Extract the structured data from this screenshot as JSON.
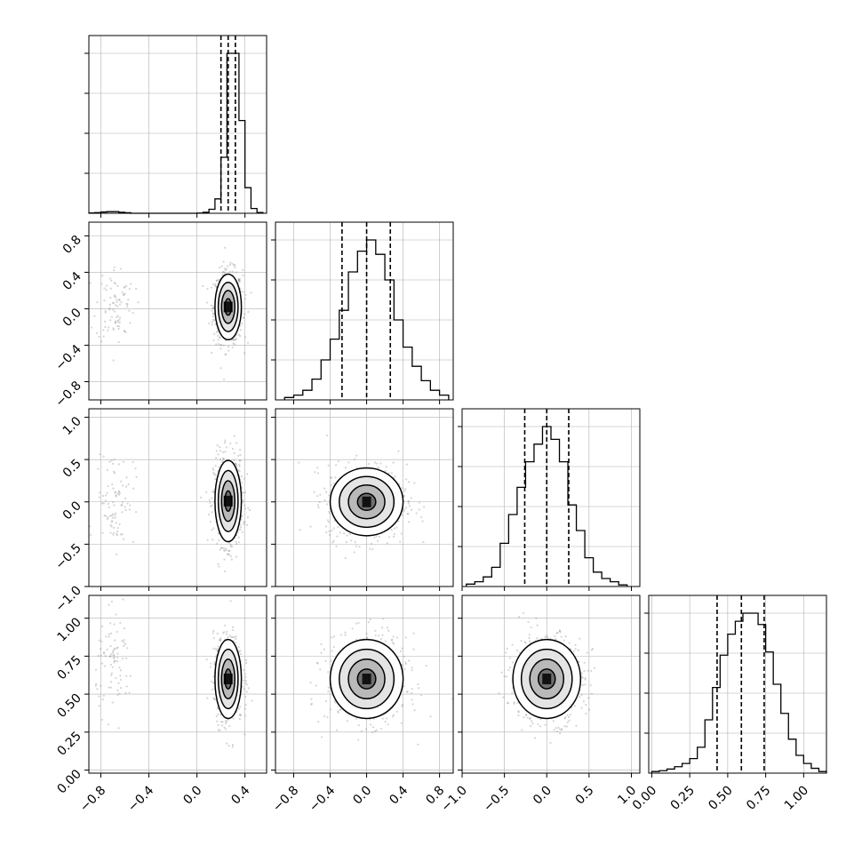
{
  "chart_data": {
    "type": "corner",
    "title": "",
    "parameters": [
      {
        "index": 0,
        "range": [
          -0.9,
          0.58
        ],
        "ticks": [
          -0.8,
          -0.4,
          0.0,
          0.4
        ],
        "tick_labels": [
          "−0.8",
          "−0.4",
          "0.0",
          "0.4"
        ],
        "quantiles": [
          0.2,
          0.26,
          0.32
        ],
        "hist_edges": [
          -0.9,
          -0.85,
          -0.8,
          -0.75,
          -0.7,
          -0.65,
          -0.6,
          -0.55,
          -0.5,
          -0.45,
          -0.4,
          -0.35,
          -0.3,
          -0.25,
          -0.2,
          -0.15,
          -0.1,
          -0.05,
          0.0,
          0.05,
          0.1,
          0.15,
          0.2,
          0.25,
          0.3,
          0.35,
          0.4,
          0.45,
          0.5,
          0.55
        ],
        "hist_counts": [
          0.2,
          0.4,
          0.8,
          1.0,
          1.0,
          0.6,
          0.3,
          0,
          0,
          0,
          0,
          0,
          0,
          0,
          0,
          0,
          0,
          0,
          0.1,
          0.6,
          2.5,
          9,
          35,
          100,
          100,
          58,
          16,
          3,
          0.5
        ]
      },
      {
        "index": 1,
        "range": [
          -1.0,
          0.95
        ],
        "ticks": [
          -0.8,
          -0.4,
          0.0,
          0.4,
          0.8
        ],
        "tick_labels": [
          "−0.8",
          "−0.4",
          "0.0",
          "0.4",
          "0.8"
        ],
        "quantiles": [
          -0.27,
          0.0,
          0.26
        ],
        "hist_edges": [
          -0.9,
          -0.8,
          -0.7,
          -0.6,
          -0.5,
          -0.4,
          -0.3,
          -0.2,
          -0.1,
          0.0,
          0.1,
          0.2,
          0.3,
          0.4,
          0.5,
          0.6,
          0.7,
          0.8,
          0.9
        ],
        "hist_counts": [
          1.5,
          3,
          6,
          13,
          25,
          38,
          56,
          80,
          93,
          100,
          91,
          75,
          50,
          33,
          21,
          12,
          6,
          3
        ]
      },
      {
        "index": 2,
        "range": [
          -1.0,
          1.1
        ],
        "ticks": [
          -1.0,
          -0.5,
          0.0,
          0.5,
          1.0
        ],
        "tick_labels": [
          "−1.0",
          "−0.5",
          "0.0",
          "0.5",
          "1.0"
        ],
        "quantiles": [
          -0.26,
          0.0,
          0.26
        ],
        "hist_edges": [
          -0.95,
          -0.85,
          -0.75,
          -0.65,
          -0.55,
          -0.45,
          -0.35,
          -0.25,
          -0.15,
          -0.05,
          0.05,
          0.15,
          0.25,
          0.35,
          0.45,
          0.55,
          0.65,
          0.75,
          0.85,
          0.95
        ],
        "hist_counts": [
          1.5,
          3,
          6,
          12,
          27,
          45,
          62,
          78,
          89,
          100,
          92,
          78,
          51,
          35,
          18,
          9,
          5,
          3,
          1
        ]
      },
      {
        "index": 3,
        "range": [
          -0.02,
          1.15
        ],
        "ticks": [
          0.0,
          0.25,
          0.5,
          0.75,
          1.0
        ],
        "tick_labels": [
          "0.00",
          "0.25",
          "0.50",
          "0.75",
          "1.00"
        ],
        "quantiles": [
          0.43,
          0.59,
          0.74
        ],
        "hist_edges": [
          0.0,
          0.05,
          0.1,
          0.15,
          0.2,
          0.25,
          0.3,
          0.35,
          0.4,
          0.45,
          0.5,
          0.55,
          0.6,
          0.65,
          0.7,
          0.75,
          0.8,
          0.85,
          0.9,
          0.95,
          1.0,
          1.05,
          1.1,
          1.15
        ],
        "hist_counts": [
          1,
          1.5,
          2.5,
          4,
          6,
          9,
          16,
          33,
          53,
          73,
          86,
          94,
          99,
          99,
          92,
          75,
          55,
          37,
          21,
          11,
          6,
          3,
          1
        ]
      }
    ],
    "joint": [
      {
        "row": 1,
        "col": 0,
        "mode": [
          0.26,
          0.02
        ],
        "sigma": [
          0.055,
          0.18
        ],
        "outlier_mode": [
          -0.68,
          0.05
        ]
      },
      {
        "row": 2,
        "col": 0,
        "mode": [
          0.26,
          0.01
        ],
        "sigma": [
          0.055,
          0.24
        ],
        "outlier_mode": [
          -0.68,
          0.05
        ]
      },
      {
        "row": 2,
        "col": 1,
        "mode": [
          0.0,
          0.0
        ],
        "sigma": [
          0.2,
          0.2
        ]
      },
      {
        "row": 3,
        "col": 0,
        "mode": [
          0.26,
          0.6
        ],
        "sigma": [
          0.055,
          0.13
        ],
        "outlier_mode": [
          -0.68,
          0.7
        ]
      },
      {
        "row": 3,
        "col": 1,
        "mode": [
          0.0,
          0.6
        ],
        "sigma": [
          0.2,
          0.13
        ]
      },
      {
        "row": 3,
        "col": 2,
        "mode": [
          0.0,
          0.6
        ],
        "sigma": [
          0.2,
          0.13
        ]
      }
    ],
    "contour_sigma_levels": [
      0.5,
      1.0,
      1.5,
      2.0
    ],
    "grid": true,
    "legend": "none"
  }
}
